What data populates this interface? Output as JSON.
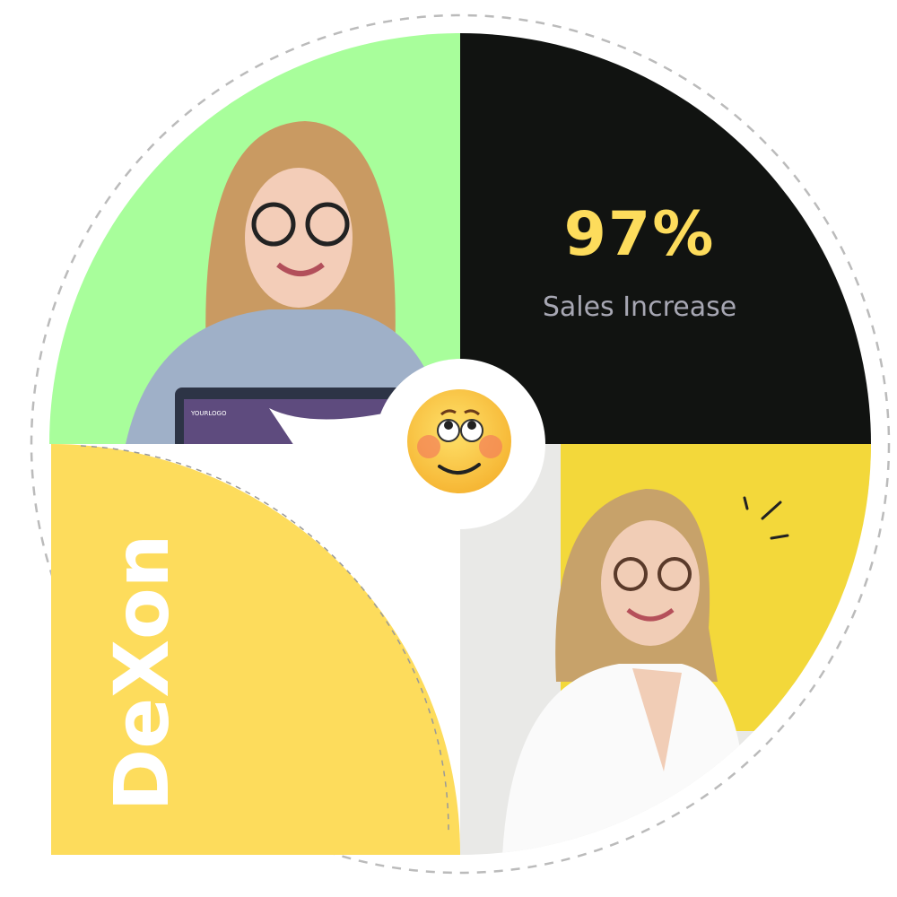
{
  "stat": {
    "value": "97%",
    "label": "Sales Increase"
  },
  "brand": {
    "name": "DeXon"
  },
  "photo_top_left": {
    "laptop_logo": "YOURLOGO"
  },
  "icons": {
    "center": "blushing-emoji-icon"
  },
  "colors": {
    "green": "#a8fe9b",
    "black": "#111311",
    "yellow": "#fddc5c",
    "stat_value": "#fddc5c",
    "stat_label": "#a7a7b3",
    "dashed_ring": "#bbbbbb",
    "emoji": "#fdc94a"
  }
}
